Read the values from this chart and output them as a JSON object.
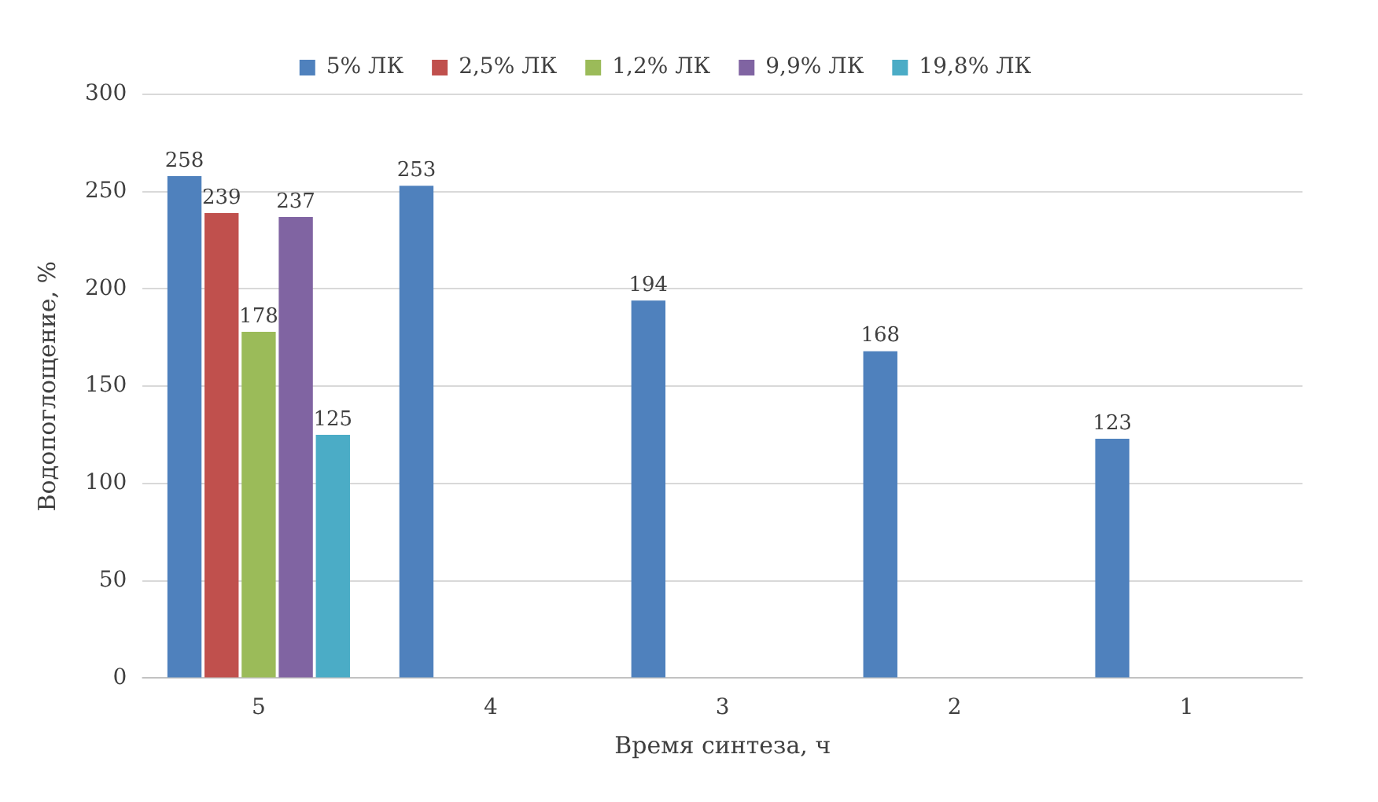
{
  "chart_data": {
    "type": "bar",
    "xlabel": "Время синтеза, ч",
    "ylabel": "Водопоглощение, %",
    "categories": [
      "5",
      "4",
      "3",
      "2",
      "1"
    ],
    "series": [
      {
        "name": "5% ЛК",
        "color": "#4f81bd",
        "values": [
          258,
          253,
          194,
          168,
          123
        ]
      },
      {
        "name": "2,5% ЛК",
        "color": "#c0504d",
        "values": [
          239,
          null,
          null,
          null,
          null
        ]
      },
      {
        "name": "1,2% ЛК",
        "color": "#9bbb59",
        "values": [
          178,
          null,
          null,
          null,
          null
        ]
      },
      {
        "name": "9,9% ЛК",
        "color": "#8064a2",
        "values": [
          237,
          null,
          null,
          null,
          null
        ]
      },
      {
        "name": "19,8% ЛК",
        "color": "#4bacc6",
        "values": [
          125,
          null,
          null,
          null,
          null
        ]
      }
    ],
    "ylim": [
      0,
      300
    ],
    "yticks": [
      0,
      50,
      100,
      150,
      200,
      250,
      300
    ],
    "grid": "y",
    "legend": "top",
    "data_labels": true
  }
}
